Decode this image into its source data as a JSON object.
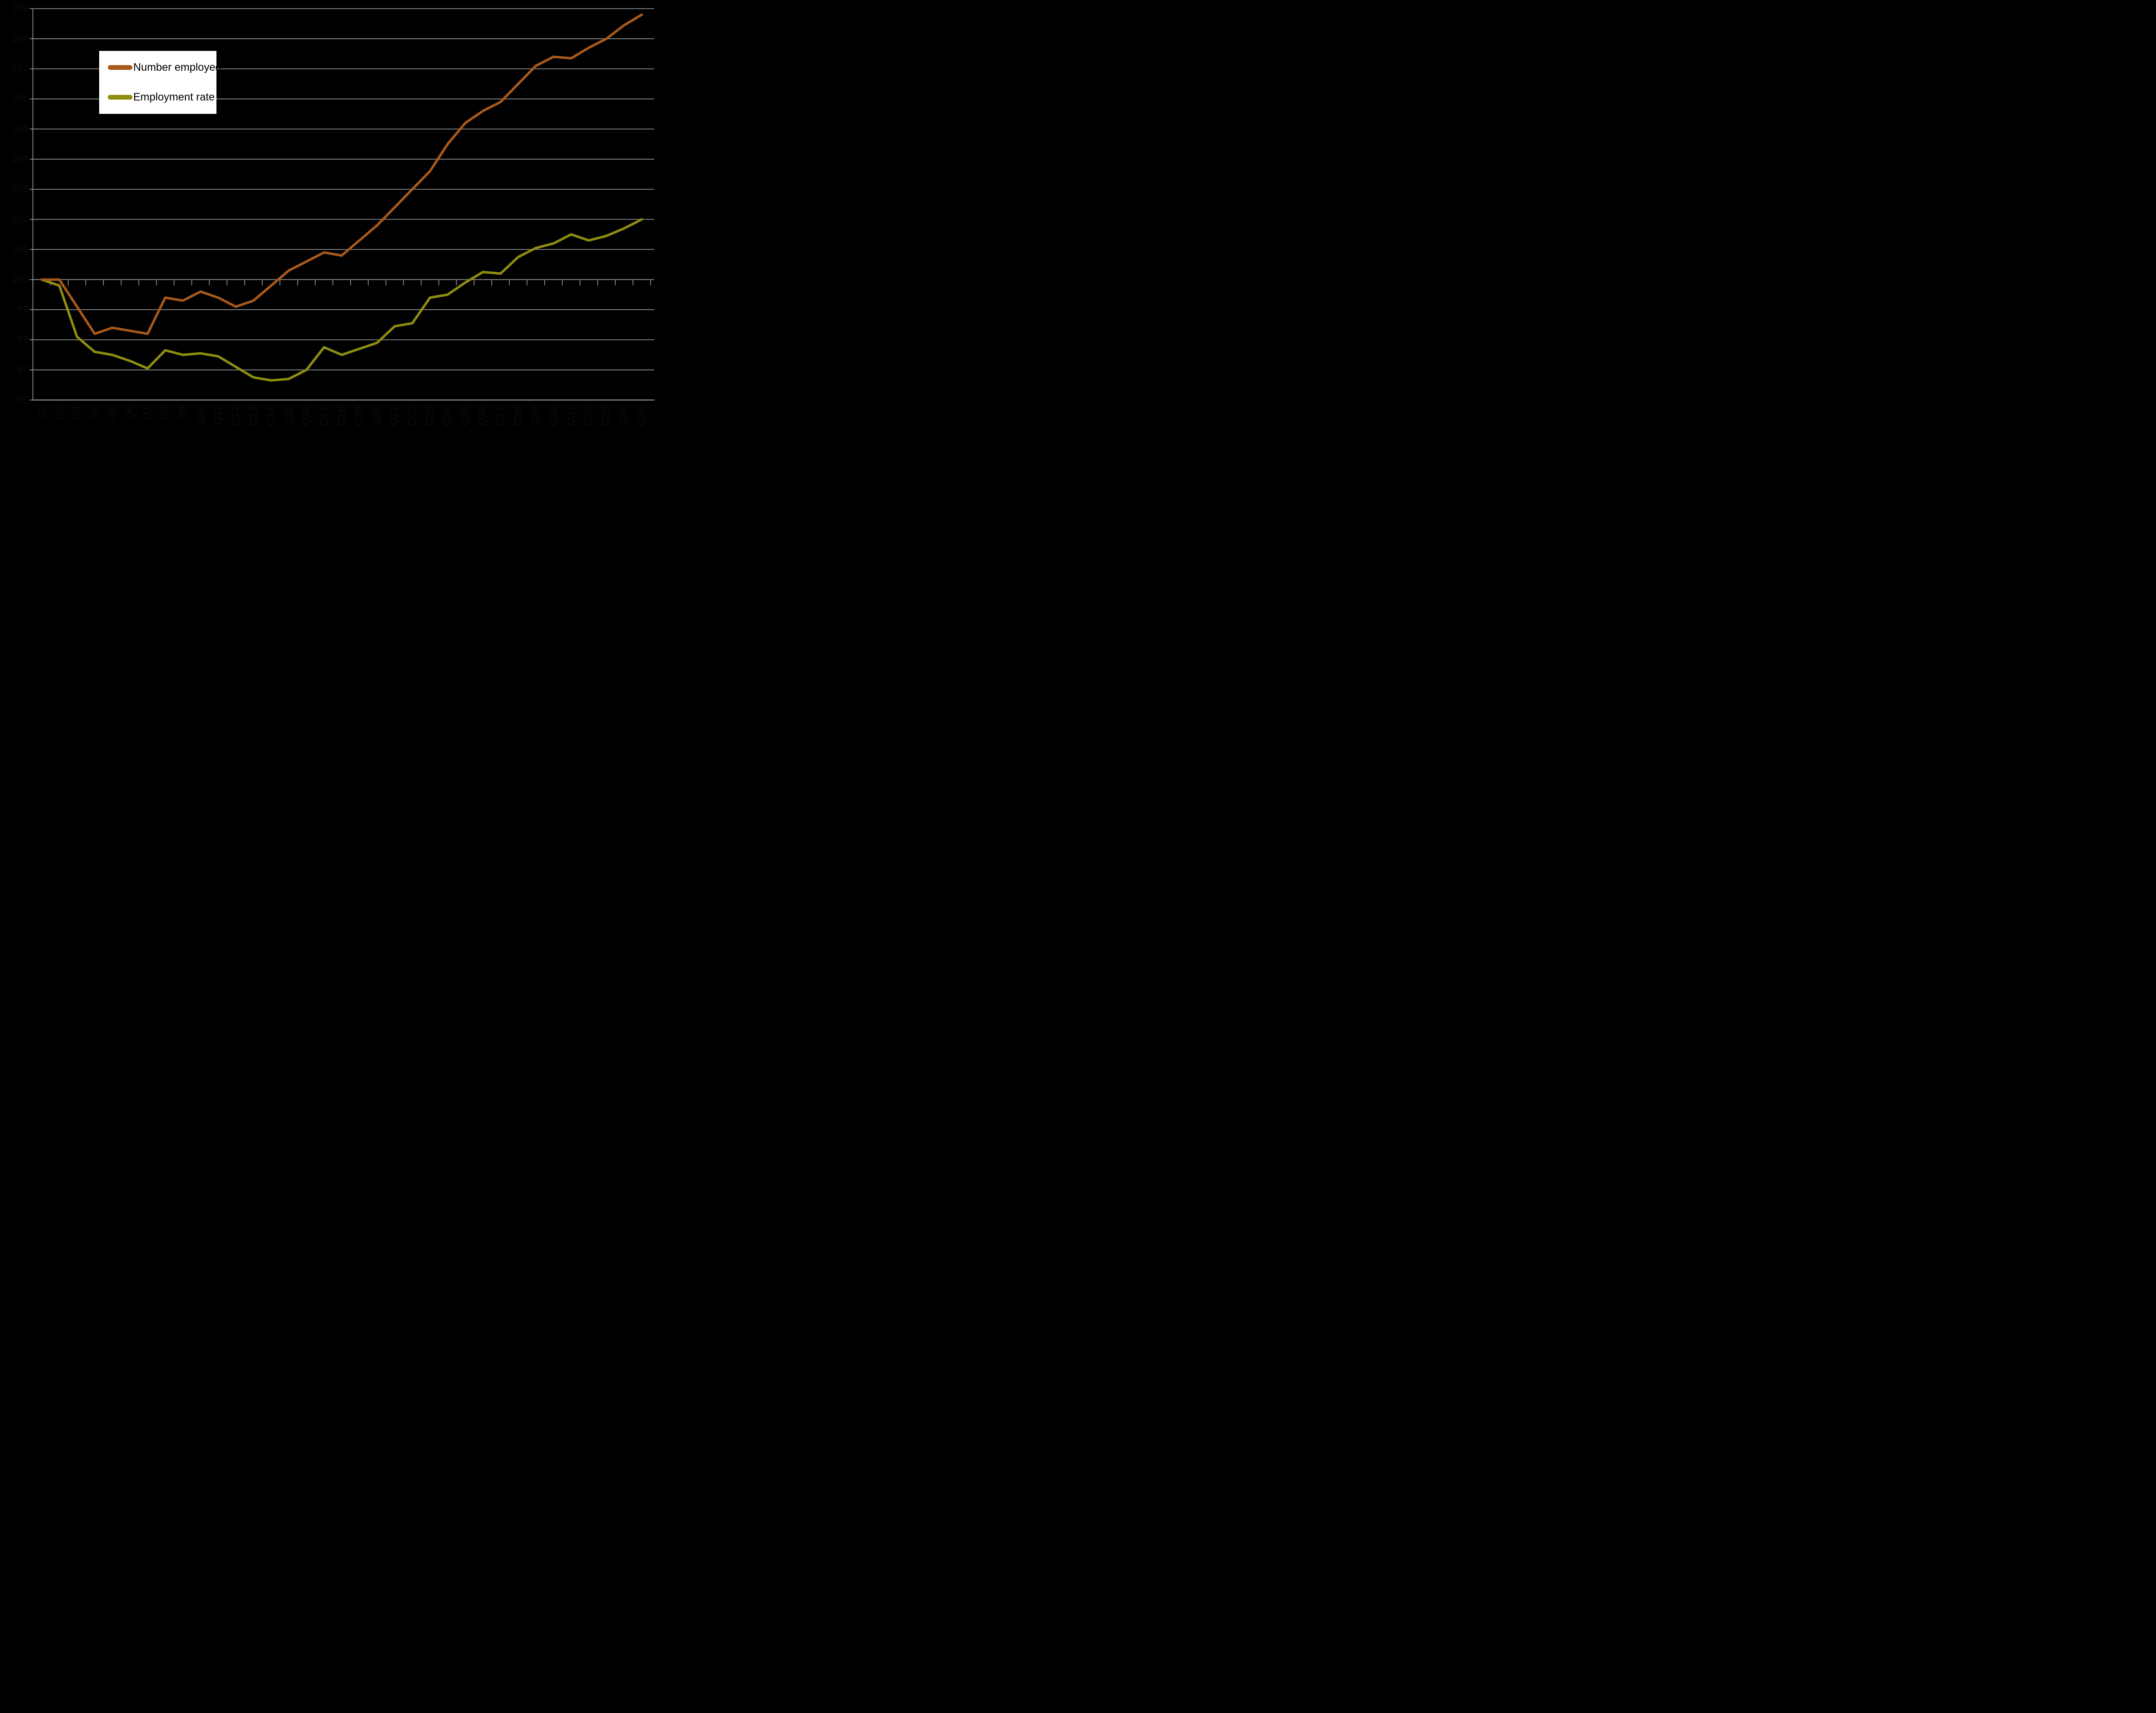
{
  "background_color": "#000000",
  "gridline_color": "#8E8E8E",
  "axis_text_color": "#0C0C0C",
  "legend": {
    "background": "#FFFFFF",
    "position": "top-left"
  },
  "chart_data": {
    "type": "line",
    "title": "",
    "xlabel": "",
    "ylabel": "",
    "ylim": [
      96,
      109
    ],
    "y_ticks": [
      109,
      108,
      107,
      106,
      105,
      104,
      103,
      102,
      101,
      100,
      99,
      98,
      97,
      96
    ],
    "grid": true,
    "category_axis_crosses_at": 100,
    "x_tick_label_rotation": -90,
    "legend_position": "top-left",
    "categories": [
      "Q1",
      "Q2",
      "Q3",
      "Q4",
      "Q5",
      "Q6",
      "Q7",
      "Q8",
      "Q9",
      "Q10",
      "Q11",
      "Q12",
      "Q13",
      "Q14",
      "Q15",
      "Q16",
      "Q17",
      "Q18",
      "Q19",
      "Q20",
      "Q21",
      "Q22",
      "Q23",
      "Q24",
      "Q25",
      "Q26",
      "Q27",
      "Q28",
      "Q29",
      "Q30",
      "Q31",
      "Q32",
      "Q33",
      "Q34",
      "Q35"
    ],
    "series": [
      {
        "name": "Employment rate",
        "color": "#8D8D10",
        "values": [
          100.0,
          99.8,
          98.1,
          97.6,
          97.5,
          97.3,
          97.05,
          97.65,
          97.5,
          97.55,
          97.45,
          97.1,
          96.75,
          96.65,
          96.7,
          97.0,
          97.75,
          97.5,
          97.7,
          97.9,
          98.45,
          98.55,
          99.4,
          99.5,
          99.9,
          100.25,
          100.2,
          100.75,
          101.05,
          101.2,
          101.5,
          101.3,
          101.45,
          101.7,
          102.0
        ]
      },
      {
        "name": "Number employed",
        "color": "#A8591A",
        "values": [
          100.0,
          100.0,
          99.1,
          98.2,
          98.4,
          98.3,
          98.2,
          99.4,
          99.3,
          99.6,
          99.4,
          99.1,
          99.3,
          99.8,
          100.3,
          100.6,
          100.9,
          100.8,
          101.3,
          101.8,
          102.4,
          103.0,
          103.6,
          104.5,
          105.2,
          105.6,
          105.9,
          106.5,
          107.1,
          107.4,
          107.35,
          107.7,
          108.0,
          108.45,
          108.8
        ]
      }
    ]
  }
}
